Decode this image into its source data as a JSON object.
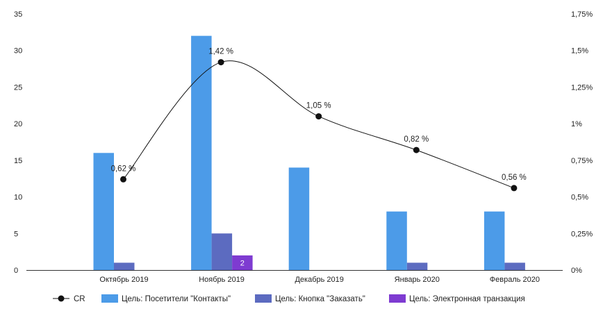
{
  "chart_data": {
    "type": "bar",
    "categories": [
      "Октябрь 2019",
      "Ноябрь 2019",
      "Декабрь 2019",
      "Январь 2020",
      "Февраль 2020"
    ],
    "series": [
      {
        "name": "Цель: Посетители \"Контакты\"",
        "type": "bar",
        "axis": "left",
        "color": "#4C9BE8",
        "values": [
          16,
          32,
          14,
          8,
          8
        ]
      },
      {
        "name": "Цель: Кнопка \"Заказать\"",
        "type": "bar",
        "axis": "left",
        "color": "#5C6BC0",
        "values": [
          1,
          5,
          0,
          1,
          1
        ]
      },
      {
        "name": "Цель: Электронная транзакция",
        "type": "bar",
        "axis": "left",
        "color": "#7E3BD1",
        "values": [
          0,
          2,
          0,
          0,
          0
        ],
        "data_labels": [
          "",
          "2",
          "",
          "",
          ""
        ]
      },
      {
        "name": "CR",
        "type": "line",
        "axis": "right",
        "color": "#111111",
        "values": [
          0.62,
          1.42,
          1.05,
          0.82,
          0.56
        ],
        "data_labels": [
          "0,62 %",
          "1,42 %",
          "1,05 %",
          "0,82 %",
          "0,56 %"
        ]
      }
    ],
    "y_left": {
      "min": 0,
      "max": 35,
      "ticks": [
        "0",
        "5",
        "10",
        "15",
        "20",
        "25",
        "30",
        "35"
      ]
    },
    "y_right": {
      "min": 0,
      "max": 1.75,
      "ticks": [
        "0%",
        "0,25%",
        "0,5%",
        "0,75%",
        "1%",
        "1,25%",
        "1,5%",
        "1,75%"
      ]
    },
    "legend": {
      "position": "bottom"
    },
    "grid": false
  }
}
